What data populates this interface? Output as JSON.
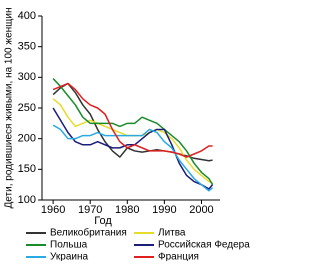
{
  "chart_data": {
    "type": "line",
    "x_label": "Год",
    "y_label": "Дети, родившиеся живыми, на 100 женщин",
    "x": [
      1960,
      1962,
      1964,
      1966,
      1968,
      1970,
      1972,
      1974,
      1976,
      1978,
      1980,
      1982,
      1984,
      1986,
      1988,
      1990,
      1992,
      1994,
      1996,
      1998,
      2000,
      2002,
      2003
    ],
    "xlim": [
      1957,
      2005
    ],
    "xticks": [
      1960,
      1970,
      1980,
      1990,
      2000
    ],
    "ylim": [
      100,
      400
    ],
    "yticks": [
      100,
      150,
      200,
      250,
      300,
      350,
      400
    ],
    "grid": false,
    "series": [
      {
        "name": "Великобритания",
        "color": "#333333",
        "values": [
          272,
          283,
          290,
          275,
          255,
          240,
          215,
          195,
          180,
          170,
          185,
          180,
          178,
          180,
          182,
          180,
          178,
          175,
          172,
          168,
          166,
          164,
          165
        ]
      },
      {
        "name": "Литва",
        "color": "#e8dc2a",
        "values": [
          265,
          255,
          235,
          220,
          225,
          230,
          225,
          220,
          215,
          210,
          205,
          205,
          205,
          210,
          215,
          210,
          200,
          185,
          165,
          150,
          140,
          130,
          128
        ]
      },
      {
        "name": "Польша",
        "color": "#1a8c2a",
        "values": [
          298,
          285,
          270,
          255,
          235,
          225,
          225,
          225,
          225,
          220,
          225,
          225,
          235,
          230,
          225,
          215,
          205,
          195,
          180,
          160,
          145,
          135,
          125
        ]
      },
      {
        "name": "Российская Федерация",
        "color": "#1c1c7a",
        "values": [
          250,
          230,
          210,
          195,
          190,
          190,
          195,
          190,
          185,
          185,
          190,
          190,
          200,
          210,
          215,
          215,
          190,
          160,
          140,
          130,
          125,
          118,
          125
        ]
      },
      {
        "name": "Украина",
        "color": "#29abe2",
        "values": [
          222,
          215,
          200,
          200,
          205,
          205,
          210,
          205,
          205,
          205,
          205,
          205,
          205,
          215,
          210,
          195,
          185,
          165,
          150,
          135,
          125,
          115,
          120
        ]
      },
      {
        "name": "Франция",
        "color": "#e02020",
        "values": [
          280,
          285,
          290,
          280,
          265,
          255,
          250,
          240,
          215,
          195,
          185,
          190,
          185,
          180,
          180,
          180,
          178,
          175,
          170,
          175,
          180,
          188,
          188
        ]
      }
    ]
  }
}
